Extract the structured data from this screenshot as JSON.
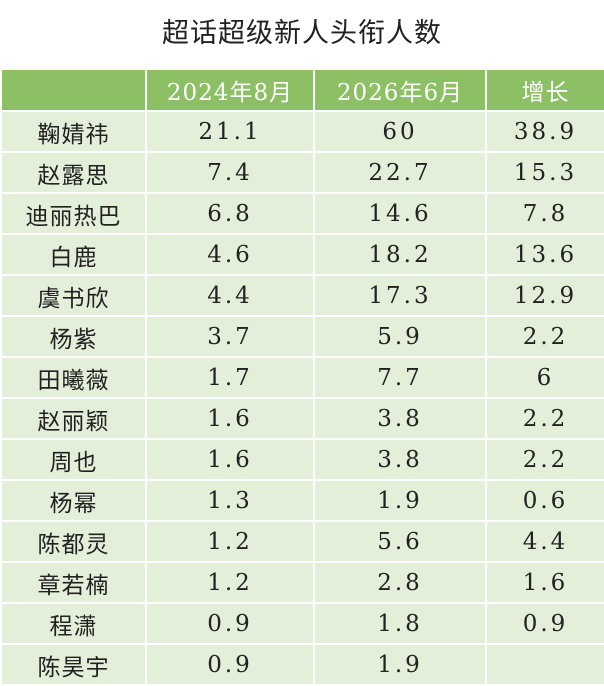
{
  "title": "超话超级新人头衔人数",
  "table": {
    "columns": [
      null,
      "2024年8月",
      "2026年6月",
      "增长"
    ],
    "rows": [
      [
        "鞠婧祎",
        21.1,
        60,
        38.9
      ],
      [
        "赵露思",
        7.4,
        22.7,
        15.3
      ],
      [
        "迪丽热巴",
        6.8,
        14.6,
        7.8
      ],
      [
        "白鹿",
        4.6,
        18.2,
        13.6
      ],
      [
        "虞书欣",
        4.4,
        17.3,
        12.9
      ],
      [
        "杨紫",
        3.7,
        5.9,
        2.2
      ],
      [
        "田曦薇",
        1.7,
        7.7,
        6
      ],
      [
        "赵丽颖",
        1.6,
        3.8,
        2.2
      ],
      [
        "周也",
        1.6,
        3.8,
        2.2
      ],
      [
        "杨幂",
        1.3,
        1.9,
        0.6
      ],
      [
        "陈都灵",
        1.2,
        5.6,
        4.4
      ],
      [
        "章若楠",
        1.2,
        2.8,
        1.6
      ],
      [
        "程潇",
        0.9,
        1.8,
        0.9
      ],
      [
        "陈昊宇",
        0.9,
        1.9,
        null
      ]
    ]
  }
}
